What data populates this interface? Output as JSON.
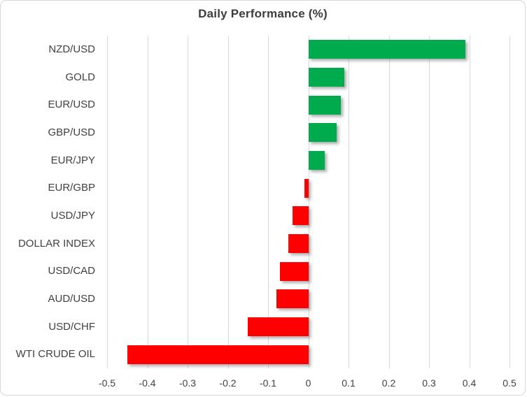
{
  "chart_data": {
    "type": "bar",
    "orientation": "horizontal",
    "title": "Daily Performance (%)",
    "categories": [
      "NZD/USD",
      "GOLD",
      "EUR/USD",
      "GBP/USD",
      "EUR/JPY",
      "EUR/GBP",
      "USD/JPY",
      "DOLLAR INDEX",
      "USD/CAD",
      "AUD/USD",
      "USD/CHF",
      "WTI CRUDE OIL"
    ],
    "values": [
      0.39,
      0.09,
      0.08,
      0.07,
      0.04,
      -0.01,
      -0.04,
      -0.05,
      -0.07,
      -0.08,
      -0.15,
      -0.45
    ],
    "xlabel": "",
    "ylabel": "",
    "xlim": [
      -0.5,
      0.5
    ],
    "x_ticks": [
      "-0.5",
      "-0.4",
      "-0.3",
      "-0.2",
      "-0.1",
      "0",
      "0.1",
      "0.2",
      "0.3",
      "0.4",
      "0.5"
    ],
    "grid": "vertical",
    "legend": "none",
    "colors": {
      "positive": "#00AB4E",
      "negative": "#FF0000",
      "gridline": "#D9D9D9",
      "title_text": "#3D3D3D",
      "axis_text": "#404040",
      "frame_border": "#D7D7D7"
    }
  }
}
